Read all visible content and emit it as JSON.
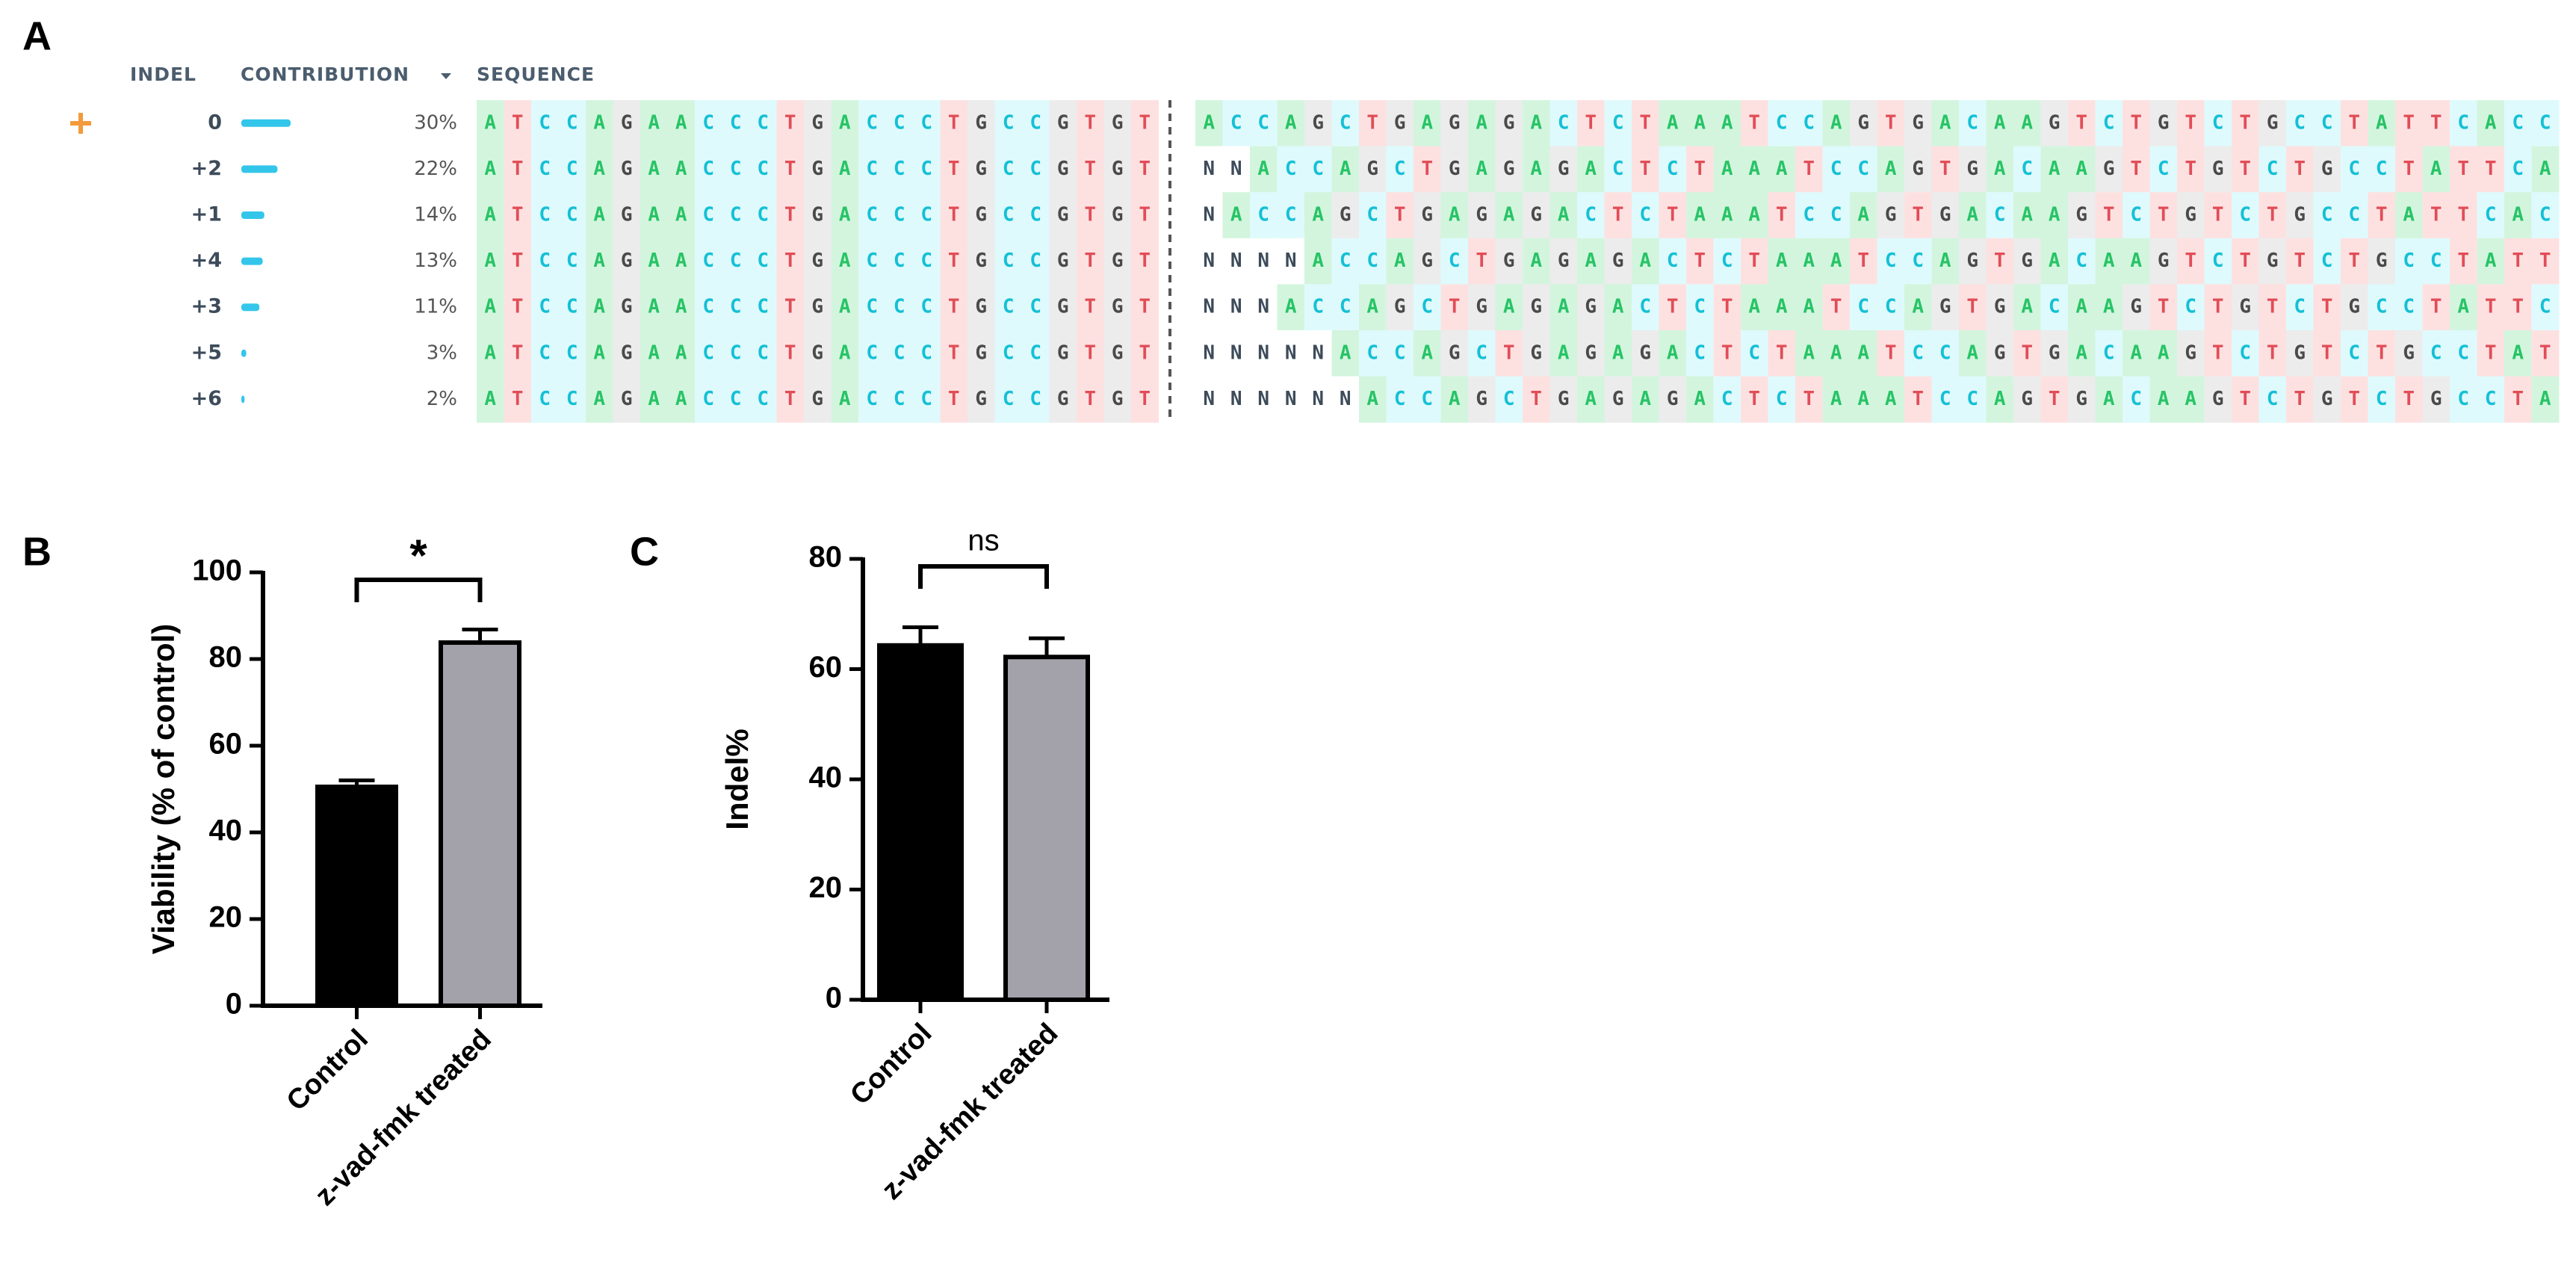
{
  "panel_labels": [
    "A",
    "B",
    "C"
  ],
  "table": {
    "headers": [
      "INDEL",
      "CONTRIBUTION",
      "SEQUENCE"
    ],
    "rows": [
      {
        "indel": "0",
        "contribution": 30,
        "contribution_label": "30%",
        "left": "ATCCAGAACCCTGACCCTGCCGTGT",
        "right": "ACCAGCTGAGAGACTCTAAATCCAGTGACAAGTCTGTCTGCCTATTCACC"
      },
      {
        "indel": "+2",
        "contribution": 22,
        "contribution_label": "22%",
        "left": "ATCCAGAACCCTGACCCTGCCGTGT",
        "right": "NNACCAGCTGAGAGACTCTAAATCCAGTGACAAGTCTGTCTGCCTATTCA"
      },
      {
        "indel": "+1",
        "contribution": 14,
        "contribution_label": "14%",
        "left": "ATCCAGAACCCTGACCCTGCCGTGT",
        "right": "NACCAGCTGAGAGACTCTAAATCCAGTGACAAGTCTGTCTGCCTATTCAC"
      },
      {
        "indel": "+4",
        "contribution": 13,
        "contribution_label": "13%",
        "left": "ATCCAGAACCCTGACCCTGCCGTGT",
        "right": "NNNNACCAGCTGAGAGACTCTAAATCCAGTGACAAGTCTGTCTGCCTATT"
      },
      {
        "indel": "+3",
        "contribution": 11,
        "contribution_label": "11%",
        "left": "ATCCAGAACCCTGACCCTGCCGTGT",
        "right": "NNNACCAGCTGAGAGACTCTAAATCCAGTGACAAGTCTGTCTGCCTATTC"
      },
      {
        "indel": "+5",
        "contribution": 3,
        "contribution_label": "3%",
        "left": "ATCCAGAACCCTGACCCTGCCGTGT",
        "right": "NNNNNACCAGCTGAGAGACTCTAAATCCAGTGACAAGTCTGTCTGCCTAT"
      },
      {
        "indel": "+6",
        "contribution": 2,
        "contribution_label": "2%",
        "left": "ATCCAGAACCCTGACCCTGCCGTGT",
        "right": "NNNNNNACCAGCTGAGAGACTCTAAATCCAGTGACAAGTCTGTCTGCCTA"
      }
    ]
  },
  "chart_data": [
    {
      "type": "bar",
      "ylabel": "Viability (% of control)",
      "categories": [
        "Control",
        "z-vad-fmk treated"
      ],
      "values": [
        50.5,
        83.8
      ],
      "errors": [
        1.5,
        3
      ],
      "colors": [
        "#000000",
        "#a3a2aa"
      ],
      "ylim": [
        0,
        100
      ],
      "yticks": [
        0,
        20,
        40,
        60,
        80,
        100
      ],
      "annotation": "*"
    },
    {
      "type": "bar",
      "ylabel": "Indel%",
      "categories": [
        "Control",
        "z-vad-fmk treated"
      ],
      "values": [
        64.3,
        62.2
      ],
      "errors": [
        3.3,
        3.4
      ],
      "colors": [
        "#000000",
        "#a3a2aa"
      ],
      "ylim": [
        0,
        80
      ],
      "yticks": [
        0,
        20,
        40,
        60,
        80
      ],
      "annotation": "ns"
    }
  ]
}
